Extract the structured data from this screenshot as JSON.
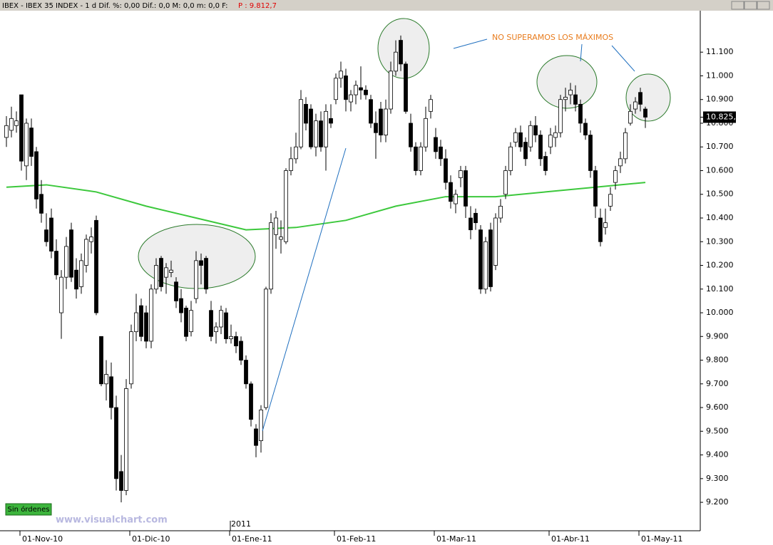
{
  "header": {
    "title": "IBEX - IBEX 35 INDEX - 1 d Dif. %: 0,00 Dif.: 0,0 M: 0,0 m: 0,0 F:",
    "price": "P : 9.812,7"
  },
  "chart_data": {
    "type": "candlestick",
    "categories": [
      null,
      null,
      null,
      "01-Nov-10",
      null,
      null,
      null,
      null,
      null,
      null,
      null,
      null,
      null,
      null,
      null,
      null,
      null,
      null,
      null,
      null,
      null,
      null,
      null,
      null,
      null,
      "01-Dic-10",
      null,
      null,
      null,
      null,
      null,
      null,
      null,
      null,
      null,
      null,
      null,
      null,
      null,
      null,
      null,
      null,
      null,
      null,
      null,
      "01-Ene-11",
      null,
      null,
      null,
      null,
      null,
      null,
      null,
      null,
      null,
      null,
      null,
      null,
      null,
      null,
      null,
      null,
      null,
      null,
      null,
      null,
      "01-Feb-11",
      null,
      null,
      null,
      null,
      null,
      null,
      null,
      null,
      null,
      null,
      null,
      null,
      null,
      null,
      null,
      null,
      null,
      null,
      null,
      "01-Mar-11",
      null,
      null,
      null,
      null,
      null,
      null,
      null,
      null,
      null,
      null,
      null,
      null,
      null,
      null,
      null,
      null,
      null,
      null,
      null,
      null,
      null,
      null,
      "01-Abr-11",
      null,
      null,
      null,
      null,
      null,
      null,
      null,
      null,
      null,
      null,
      null,
      null,
      null,
      null,
      null,
      null,
      null,
      "01-May-11",
      null
    ],
    "candles": [
      [
        10740,
        10830,
        10700,
        10790
      ],
      [
        10770,
        10870,
        10740,
        10820
      ],
      [
        10790,
        10850,
        10760,
        10810
      ],
      [
        10920,
        10920,
        10600,
        10640
      ],
      [
        10620,
        10820,
        10560,
        10800
      ],
      [
        10780,
        10820,
        10620,
        10660
      ],
      [
        10680,
        10700,
        10440,
        10480
      ],
      [
        10500,
        10560,
        10380,
        10420
      ],
      [
        10350,
        10420,
        10280,
        10300
      ],
      [
        10400,
        10440,
        10230,
        10260
      ],
      [
        10260,
        10310,
        10140,
        10160
      ],
      [
        10000,
        10180,
        9890,
        10150
      ],
      [
        10150,
        10320,
        10100,
        10280
      ],
      [
        10350,
        10380,
        10130,
        10150
      ],
      [
        10180,
        10230,
        10060,
        10100
      ],
      [
        10110,
        10250,
        10080,
        10220
      ],
      [
        10200,
        10330,
        10170,
        10310
      ],
      [
        10300,
        10360,
        10250,
        10320
      ],
      [
        10390,
        10410,
        9990,
        10000
      ],
      [
        9900,
        9900,
        9690,
        9700
      ],
      [
        9700,
        9800,
        9630,
        9740
      ],
      [
        9730,
        9790,
        9550,
        9600
      ],
      [
        9600,
        9650,
        9250,
        9300
      ],
      [
        9330,
        9400,
        9200,
        9250
      ],
      [
        9250,
        9720,
        9230,
        9680
      ],
      [
        9700,
        9950,
        9680,
        9920
      ],
      [
        9920,
        10080,
        9880,
        10000
      ],
      [
        10030,
        10060,
        9880,
        9900
      ],
      [
        10000,
        10030,
        9850,
        9880
      ],
      [
        9880,
        10120,
        9850,
        10100
      ],
      [
        10100,
        10230,
        10080,
        10200
      ],
      [
        10230,
        10240,
        10090,
        10110
      ],
      [
        10150,
        10210,
        10080,
        10190
      ],
      [
        10170,
        10220,
        10150,
        10180
      ],
      [
        10130,
        10150,
        10020,
        10050
      ],
      [
        10060,
        10100,
        9960,
        10000
      ],
      [
        10020,
        10030,
        9880,
        9900
      ],
      [
        9920,
        10050,
        9900,
        10010
      ],
      [
        10060,
        10260,
        10040,
        10220
      ],
      [
        10220,
        10250,
        10120,
        10200
      ],
      [
        10230,
        10240,
        10080,
        10100
      ],
      [
        10010,
        10050,
        9880,
        9900
      ],
      [
        9920,
        9960,
        9870,
        9940
      ],
      [
        9940,
        10030,
        9910,
        10010
      ],
      [
        10000,
        10020,
        9870,
        9890
      ],
      [
        9890,
        9950,
        9870,
        9900
      ],
      [
        9900,
        9920,
        9830,
        9860
      ],
      [
        9880,
        9900,
        9780,
        9800
      ],
      [
        9800,
        9820,
        9680,
        9700
      ],
      [
        9700,
        9710,
        9520,
        9550
      ],
      [
        9510,
        9530,
        9390,
        9440
      ],
      [
        9460,
        9610,
        9410,
        9590
      ],
      [
        9600,
        10110,
        9590,
        10100
      ],
      [
        10100,
        10420,
        10080,
        10380
      ],
      [
        10330,
        10430,
        10270,
        10400
      ],
      [
        10310,
        10390,
        10250,
        10320
      ],
      [
        10300,
        10610,
        10290,
        10600
      ],
      [
        10600,
        10700,
        10580,
        10650
      ],
      [
        10650,
        10760,
        10630,
        10700
      ],
      [
        10700,
        10940,
        10690,
        10900
      ],
      [
        10880,
        10910,
        10770,
        10800
      ],
      [
        10860,
        10880,
        10690,
        10700
      ],
      [
        10700,
        10840,
        10660,
        10810
      ],
      [
        10810,
        10850,
        10680,
        10700
      ],
      [
        10700,
        10880,
        10600,
        10850
      ],
      [
        10820,
        10880,
        10780,
        10800
      ],
      [
        10900,
        11010,
        10880,
        10990
      ],
      [
        10990,
        11060,
        10950,
        11020
      ],
      [
        11000,
        11030,
        10850,
        10900
      ],
      [
        10890,
        10940,
        10850,
        10920
      ],
      [
        10920,
        10980,
        10880,
        10960
      ],
      [
        10950,
        11040,
        10900,
        10940
      ],
      [
        10940,
        10960,
        10900,
        10920
      ],
      [
        10900,
        10920,
        10780,
        10800
      ],
      [
        10800,
        10850,
        10650,
        10760
      ],
      [
        10860,
        10890,
        10720,
        10750
      ],
      [
        10750,
        10900,
        10720,
        10860
      ],
      [
        10860,
        11060,
        10840,
        11020
      ],
      [
        11020,
        11150,
        11000,
        11100
      ],
      [
        11150,
        11170,
        11020,
        11050
      ],
      [
        11050,
        11060,
        10840,
        10850
      ],
      [
        10800,
        10840,
        10680,
        10700
      ],
      [
        10700,
        10720,
        10580,
        10600
      ],
      [
        10600,
        10720,
        10580,
        10700
      ],
      [
        10700,
        10870,
        10680,
        10820
      ],
      [
        10850,
        10920,
        10820,
        10900
      ],
      [
        10740,
        10780,
        10650,
        10680
      ],
      [
        10700,
        10730,
        10620,
        10650
      ],
      [
        10650,
        10690,
        10520,
        10550
      ],
      [
        10550,
        10580,
        10440,
        10470
      ],
      [
        10460,
        10520,
        10420,
        10500
      ],
      [
        10570,
        10620,
        10530,
        10600
      ],
      [
        10600,
        10620,
        10400,
        10450
      ],
      [
        10400,
        10450,
        10310,
        10350
      ],
      [
        10420,
        10440,
        10350,
        10380
      ],
      [
        10350,
        10370,
        10080,
        10100
      ],
      [
        10100,
        10320,
        10080,
        10300
      ],
      [
        10350,
        10380,
        10090,
        10110
      ],
      [
        10200,
        10420,
        10180,
        10400
      ],
      [
        10400,
        10480,
        10380,
        10450
      ],
      [
        10500,
        10620,
        10480,
        10600
      ],
      [
        10600,
        10720,
        10580,
        10700
      ],
      [
        10720,
        10780,
        10700,
        10760
      ],
      [
        10760,
        10790,
        10680,
        10700
      ],
      [
        10720,
        10740,
        10620,
        10650
      ],
      [
        10700,
        10810,
        10680,
        10790
      ],
      [
        10790,
        10830,
        10720,
        10750
      ],
      [
        10750,
        10770,
        10620,
        10650
      ],
      [
        10660,
        10680,
        10580,
        10600
      ],
      [
        10700,
        10780,
        10670,
        10750
      ],
      [
        10740,
        10790,
        10700,
        10760
      ],
      [
        10760,
        10920,
        10740,
        10900
      ],
      [
        10900,
        10950,
        10850,
        10910
      ],
      [
        10920,
        10970,
        10880,
        10940
      ],
      [
        10920,
        10960,
        10850,
        10880
      ],
      [
        10880,
        10900,
        10760,
        10800
      ],
      [
        10800,
        10820,
        10730,
        10750
      ],
      [
        10750,
        10770,
        10570,
        10600
      ],
      [
        10600,
        10620,
        10400,
        10450
      ],
      [
        10400,
        10440,
        10280,
        10300
      ],
      [
        10360,
        10440,
        10330,
        10380
      ],
      [
        10450,
        10530,
        10430,
        10500
      ],
      [
        10550,
        10620,
        10520,
        10600
      ],
      [
        10620,
        10680,
        10590,
        10650
      ],
      [
        10650,
        10780,
        10630,
        10760
      ],
      [
        10800,
        10880,
        10790,
        10850
      ],
      [
        10860,
        10910,
        10840,
        10890
      ],
      [
        10930,
        10950,
        10850,
        10880
      ],
      [
        10860,
        10870,
        10780,
        10825.6
      ]
    ],
    "ma": {
      "color": "#3cc83c",
      "x": [
        0,
        8,
        18,
        28,
        38,
        48,
        58,
        68,
        78,
        88,
        98,
        108,
        118,
        128
      ],
      "values": [
        10530,
        10540,
        10510,
        10450,
        10400,
        10350,
        10360,
        10390,
        10450,
        10490,
        10490,
        10510,
        10530,
        10550
      ]
    },
    "ylim": [
      9080,
      11275
    ],
    "yticks": [
      {
        "value": 9200,
        "label": "9.200"
      },
      {
        "value": 9300,
        "label": "9.300"
      },
      {
        "value": 9400,
        "label": "9.400"
      },
      {
        "value": 9500,
        "label": "9.500"
      },
      {
        "value": 9600,
        "label": "9.600"
      },
      {
        "value": 9700,
        "label": "9.700"
      },
      {
        "value": 9800,
        "label": "9.800"
      },
      {
        "value": 9900,
        "label": "9.900"
      },
      {
        "value": 10000,
        "label": "10.000"
      },
      {
        "value": 10100,
        "label": "10.100"
      },
      {
        "value": 10200,
        "label": "10.200"
      },
      {
        "value": 10300,
        "label": "10.300"
      },
      {
        "value": 10400,
        "label": "10.400"
      },
      {
        "value": 10500,
        "label": "10.500"
      },
      {
        "value": 10600,
        "label": "10.600"
      },
      {
        "value": 10700,
        "label": "10.700"
      },
      {
        "value": 10800,
        "label": "10.800"
      },
      {
        "value": 10900,
        "label": "10.900"
      },
      {
        "value": 11000,
        "label": "11.000"
      },
      {
        "value": 11100,
        "label": "11.100"
      }
    ],
    "last_price": {
      "value": 10825.6,
      "label": "10.825,6"
    },
    "year_label": "2011",
    "annotation": "NO SUPERAMOS LOS MÁXIMOS"
  },
  "footer": {
    "button": "Sin órdenes",
    "watermark": "www.visualchart.com"
  }
}
